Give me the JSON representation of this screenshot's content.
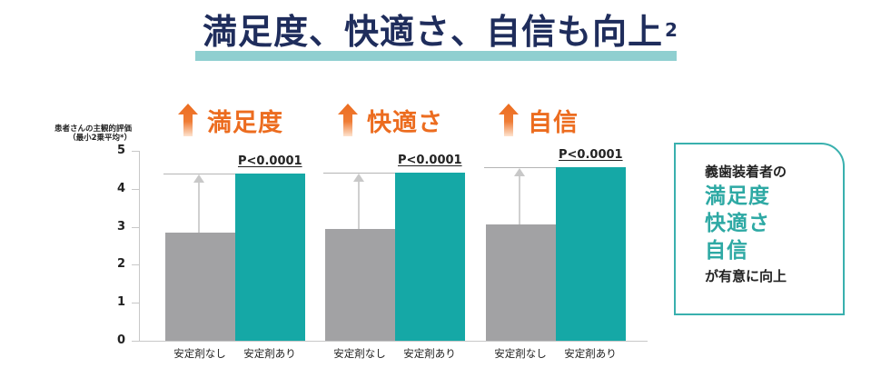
{
  "title": {
    "text": "満足度、快適さ、自信も向上",
    "superscript": "2"
  },
  "colors": {
    "navy": "#1f2d5c",
    "title_band": "#8fcfd0",
    "orange": "#ec6c1f",
    "teal": "#15a8a6",
    "gray": "#a2a2a4",
    "box_border": "#39b0ae"
  },
  "chart_data": {
    "type": "bar",
    "title": "満足度、快適さ、自信も向上",
    "ylabel": "患者さんの主観的評価（最小2乗平均*）",
    "ylabel_line1": "患者さんの主観的評価",
    "ylabel_line2": "（最小2乗平均*）",
    "xlabel": "",
    "ylim": [
      0,
      5
    ],
    "yticks": [
      "0",
      "1",
      "2",
      "3",
      "4",
      "5"
    ],
    "grid": false,
    "categories": [
      "満足度",
      "快適さ",
      "自信"
    ],
    "series": [
      {
        "name": "安定剤なし",
        "color": "#a2a2a4",
        "values": [
          2.85,
          2.94,
          3.06
        ]
      },
      {
        "name": "安定剤あり",
        "color": "#15a8a6",
        "values": [
          4.4,
          4.43,
          4.57
        ]
      }
    ],
    "groups": [
      {
        "heading": "満足度",
        "p_value": "P<0.0001",
        "x_labels": [
          "安定剤なし",
          "安定剤あり"
        ]
      },
      {
        "heading": "快適さ",
        "p_value": "P<0.0001",
        "x_labels": [
          "安定剤なし",
          "安定剤あり"
        ]
      },
      {
        "heading": "自信",
        "p_value": "P<0.0001",
        "x_labels": [
          "安定剤なし",
          "安定剤あり"
        ]
      }
    ],
    "annotations": [
      "P<0.0001",
      "P<0.0001",
      "P<0.0001"
    ]
  },
  "sidebox": {
    "line1": "義歯装着者の",
    "highlights": [
      "満足度",
      "快適さ",
      "自信"
    ],
    "line_last": "が有意に向上"
  },
  "icons": {
    "heading_arrow": "up-arrow-icon"
  }
}
